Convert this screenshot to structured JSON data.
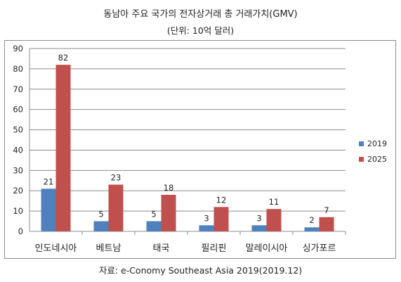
{
  "title": "동남아 주요 국가의 전자상거래 총 거래가치(GMV)",
  "subtitle": "(단위: 10억 달러)",
  "source": "자료: e-Conomy Southeast Asia 2019(2019.12)",
  "chart_data": {
    "type": "bar",
    "categories": [
      "인도네시아",
      "베트남",
      "태국",
      "필리핀",
      "말레이시아",
      "싱가포르"
    ],
    "series": [
      {
        "name": "2019",
        "values": [
          21,
          5,
          5,
          3,
          3,
          2
        ],
        "color": "#4f81bd"
      },
      {
        "name": "2025",
        "values": [
          82,
          23,
          18,
          12,
          11,
          7
        ],
        "color": "#c0504d"
      }
    ],
    "ylim": [
      0,
      90
    ],
    "yticks": [
      0,
      10,
      20,
      30,
      40,
      50,
      60,
      70,
      80,
      90
    ],
    "grid": true,
    "legend": "right"
  }
}
